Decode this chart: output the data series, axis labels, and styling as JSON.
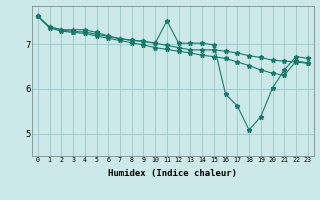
{
  "xlabel": "Humidex (Indice chaleur)",
  "bg_color": "#cce8e8",
  "grid_color": "#99cccc",
  "line_color": "#1a7a6a",
  "xlim": [
    -0.5,
    23.5
  ],
  "ylim": [
    4.5,
    7.85
  ],
  "yticks": [
    5,
    6,
    7
  ],
  "ytick_labels": [
    "5",
    "6",
    "7"
  ],
  "xtick_labels": [
    "0",
    "1",
    "2",
    "3",
    "4",
    "5",
    "6",
    "7",
    "8",
    "9",
    "10",
    "11",
    "12",
    "13",
    "14",
    "15",
    "16",
    "17",
    "18",
    "19",
    "20",
    "21",
    "22",
    "23"
  ],
  "series": [
    {
      "x": [
        0,
        1,
        2,
        3,
        4,
        5,
        6,
        7,
        8,
        9,
        10,
        11,
        12,
        13,
        14,
        15,
        16,
        17,
        18,
        19,
        20,
        21,
        22,
        23
      ],
      "y": [
        7.62,
        7.38,
        7.32,
        7.32,
        7.32,
        7.26,
        7.18,
        7.12,
        7.08,
        7.06,
        7.02,
        7.52,
        7.02,
        7.02,
        7.02,
        6.98,
        5.88,
        5.62,
        5.08,
        5.38,
        6.02,
        6.42,
        6.72,
        6.68
      ]
    },
    {
      "x": [
        0,
        1,
        2,
        3,
        4,
        5,
        6,
        7,
        8,
        9,
        10,
        11,
        12,
        13,
        14,
        15,
        16,
        17,
        18,
        19,
        20,
        21,
        22,
        23
      ],
      "y": [
        7.62,
        7.38,
        7.32,
        7.28,
        7.27,
        7.22,
        7.17,
        7.12,
        7.09,
        7.06,
        7.02,
        6.97,
        6.92,
        6.87,
        6.87,
        6.87,
        6.84,
        6.8,
        6.74,
        6.7,
        6.64,
        6.62,
        6.6,
        6.57
      ]
    },
    {
      "x": [
        0,
        1,
        2,
        3,
        4,
        5,
        6,
        7,
        8,
        9,
        10,
        11,
        12,
        13,
        14,
        15,
        16,
        17,
        18,
        19,
        20,
        21,
        22,
        23
      ],
      "y": [
        7.62,
        7.36,
        7.29,
        7.26,
        7.24,
        7.18,
        7.13,
        7.08,
        7.03,
        6.98,
        6.92,
        6.88,
        6.84,
        6.8,
        6.75,
        6.72,
        6.68,
        6.6,
        6.52,
        6.42,
        6.35,
        6.3,
        6.62,
        6.58
      ]
    }
  ]
}
